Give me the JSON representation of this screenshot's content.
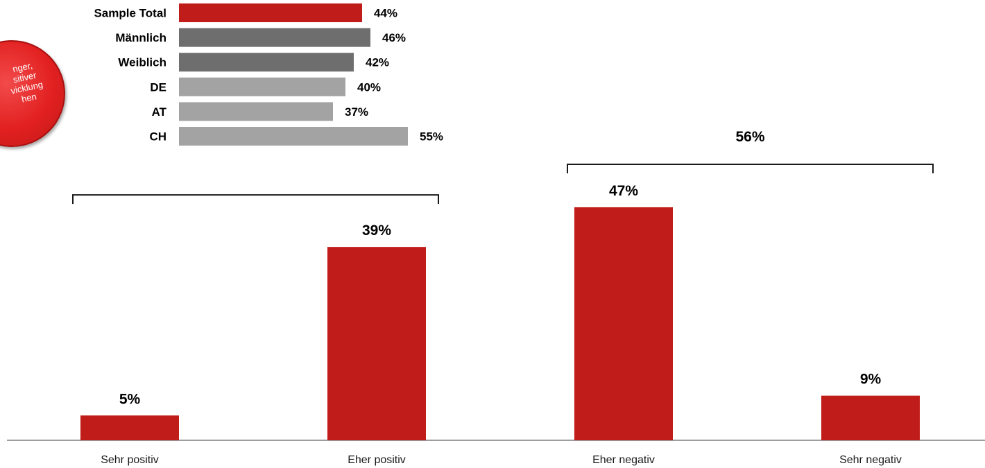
{
  "badge": {
    "lines": [
      "nger,",
      "sitiver",
      "vicklung",
      "hen"
    ]
  },
  "colors": {
    "red": "#c01c19",
    "dark_gray": "#6e6e6e",
    "light_gray": "#a3a3a3",
    "axis": "#7f7f7f",
    "bracket": "#1a1a1a"
  },
  "chart_data": [
    {
      "type": "bar",
      "orientation": "vertical",
      "categories": [
        "Sehr positiv",
        "Eher positiv",
        "Eher negativ",
        "Sehr negativ"
      ],
      "values": [
        5,
        39,
        47,
        9
      ],
      "value_labels": [
        "5%",
        "39%",
        "47%",
        "9%"
      ],
      "unit": "%",
      "ylim": [
        0,
        56
      ],
      "grid": false,
      "brackets": [
        {
          "categories": [
            "Sehr positiv",
            "Eher positiv"
          ],
          "label": ""
        },
        {
          "categories": [
            "Eher negativ",
            "Sehr negativ"
          ],
          "label": "56%"
        }
      ]
    },
    {
      "type": "bar",
      "orientation": "horizontal",
      "categories": [
        "Sample Total",
        "Männlich",
        "Weiblich",
        "DE",
        "AT",
        "CH"
      ],
      "values": [
        44,
        46,
        42,
        40,
        37,
        55
      ],
      "value_labels": [
        "44%",
        "46%",
        "42%",
        "40%",
        "37%",
        "55%"
      ],
      "unit": "%",
      "color_groups": [
        "red",
        "dark_gray",
        "dark_gray",
        "light_gray",
        "light_gray",
        "light_gray"
      ],
      "grid": false
    }
  ]
}
